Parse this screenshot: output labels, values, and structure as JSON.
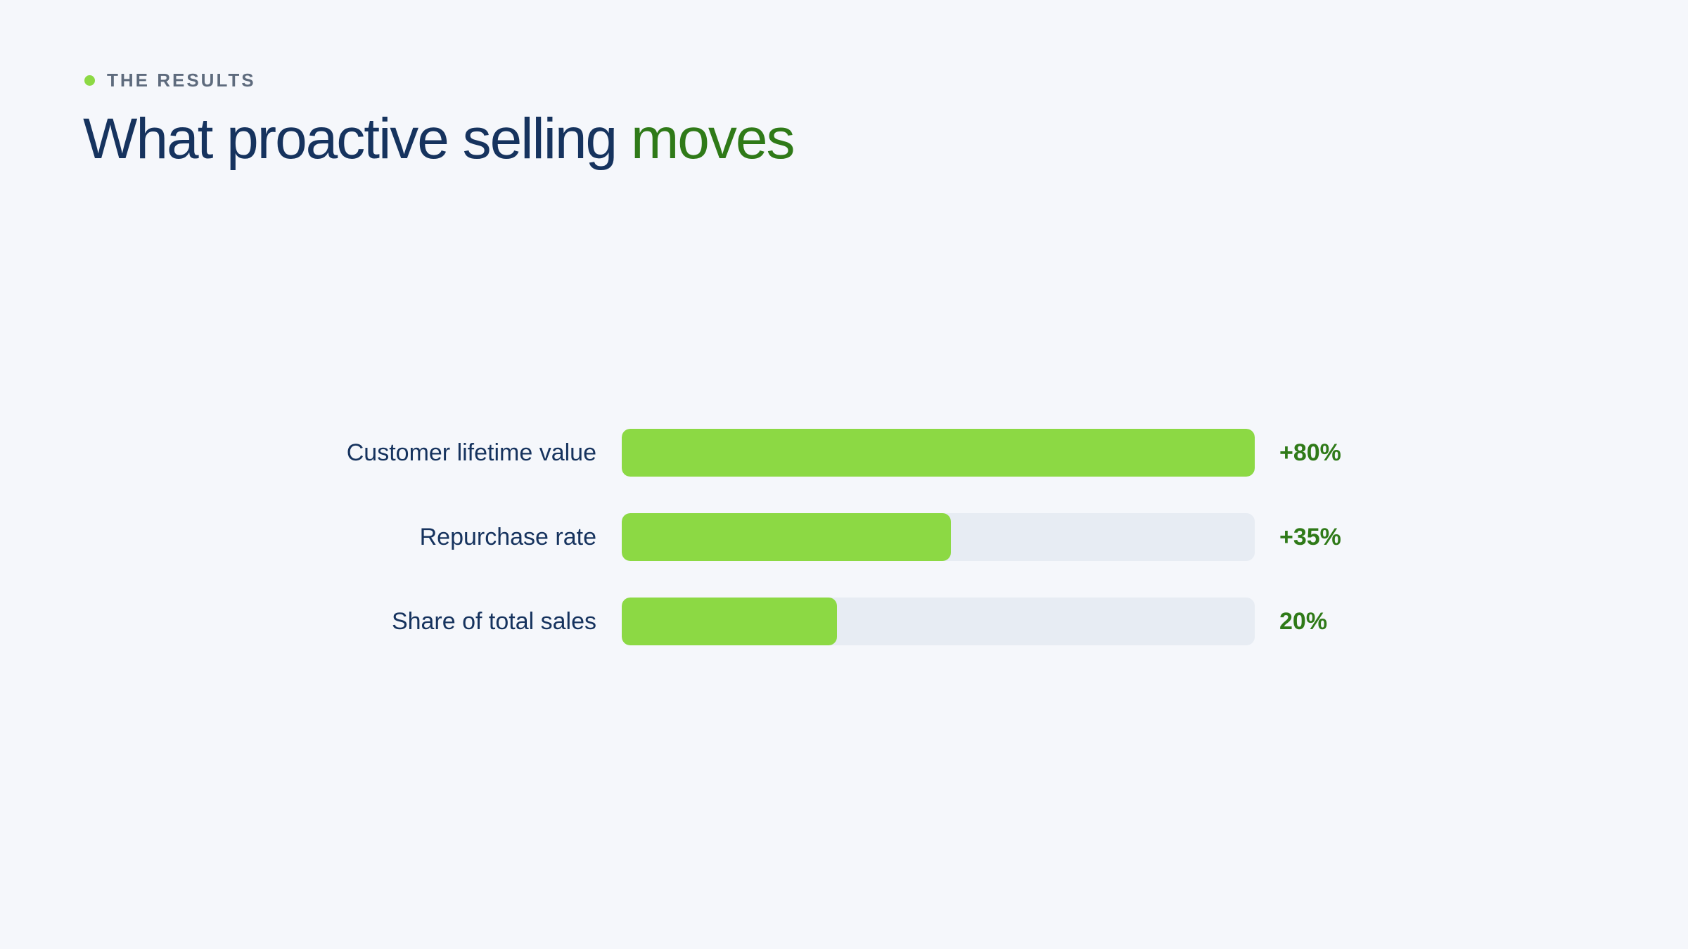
{
  "eyebrow": "THE RESULTS",
  "title": {
    "main": "What proactive selling ",
    "accent": "moves"
  },
  "colors": {
    "background": "#f5f7fb",
    "navy": "#16335e",
    "accent_green": "#2f7a18",
    "bar_green": "#8cd944",
    "track": "#e7ecf3"
  },
  "chart_data": {
    "type": "bar",
    "orientation": "horizontal",
    "title": "What proactive selling moves",
    "categories": [
      "Customer lifetime value",
      "Repurchase rate",
      "Share of total sales"
    ],
    "value_labels": [
      "+80%",
      "+35%",
      "20%"
    ],
    "values": [
      80,
      35,
      20
    ],
    "fill_fraction": [
      1.0,
      0.52,
      0.34
    ],
    "xlabel": "",
    "ylabel": "",
    "grid": false,
    "legend": "none"
  }
}
